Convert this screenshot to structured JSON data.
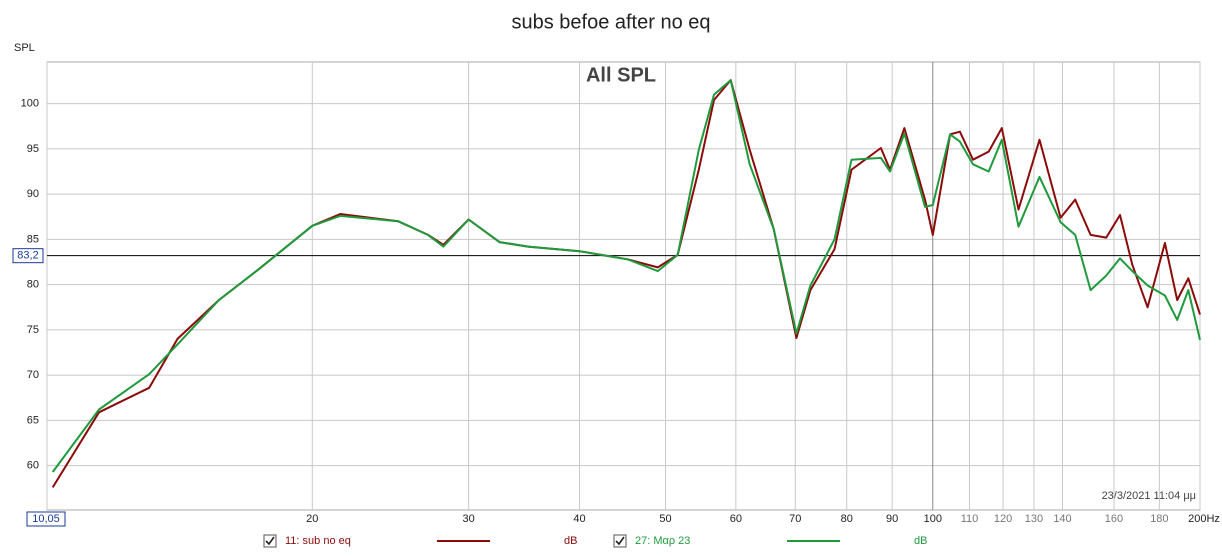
{
  "chart_data": {
    "type": "line",
    "title": "subs befoe after no eq",
    "y_label": "SPL",
    "annotation": "All SPL",
    "timestamp": "23/3/2021 11:04 μμ",
    "log_x": true,
    "grid": true,
    "xlim": [
      10.05,
      200
    ],
    "ylim": [
      55.1,
      104.6
    ],
    "xticks": [
      {
        "value": 10.05,
        "label": "10,05"
      },
      20,
      30,
      40,
      50,
      60,
      70,
      80,
      90,
      100,
      110,
      120,
      130,
      140,
      160,
      180,
      {
        "value": 200,
        "label": "200Hz"
      }
    ],
    "yticks": [
      60,
      65,
      70,
      75,
      80,
      85,
      90,
      95,
      100
    ],
    "cursor": {
      "value": 83.2,
      "label": "83,2"
    },
    "x": [
      10.2,
      11.5,
      13.1,
      14.1,
      15.7,
      17.4,
      20,
      21.5,
      25,
      27,
      28.1,
      30,
      32.5,
      35,
      40,
      45.3,
      49,
      51.6,
      54.5,
      56.7,
      59.2,
      62.2,
      66.2,
      70.2,
      72.8,
      77.5,
      81,
      87.4,
      89.5,
      92.9,
      98,
      100,
      104.6,
      107.3,
      111,
      115.6,
      119.6,
      124.9,
      131.9,
      139.3,
      144.7,
      150.6,
      156.8,
      162.5,
      167.8,
      174.6,
      182.6,
      188.5,
      194,
      200
    ],
    "series": [
      {
        "name": "11: sub no eq",
        "unit": "dB",
        "color": "#8b0a0a",
        "values": [
          57.6,
          65.9,
          68.6,
          74,
          78.3,
          81.7,
          86.5,
          87.8,
          87,
          85.5,
          84.4,
          87.2,
          84.7,
          84.2,
          83.7,
          82.8,
          81.9,
          83.3,
          92.7,
          100.4,
          102.6,
          94.9,
          86.1,
          74.1,
          79.4,
          83.9,
          92.7,
          95.1,
          92.7,
          97.3,
          89.4,
          85.5,
          96.6,
          96.9,
          93.8,
          94.7,
          97.3,
          88.3,
          96,
          87.4,
          89.4,
          85.5,
          85.2,
          87.7,
          82.2,
          77.5,
          84.6,
          78.3,
          80.7,
          76.7
        ]
      },
      {
        "name": "27: Μαρ 23",
        "unit": "dB",
        "color": "#1f9a3c",
        "values": [
          59.3,
          66.2,
          70.1,
          73.4,
          78.3,
          81.7,
          86.5,
          87.6,
          87,
          85.5,
          84.2,
          87.2,
          84.7,
          84.2,
          83.7,
          82.8,
          81.5,
          83.3,
          94.9,
          101,
          102.6,
          93.3,
          86.1,
          74.6,
          79.9,
          85,
          93.8,
          94,
          92.5,
          96.7,
          88.6,
          88.8,
          96.6,
          95.8,
          93.3,
          92.5,
          96,
          86.4,
          91.9,
          86.9,
          85.5,
          79.4,
          81,
          82.9,
          81.5,
          79.9,
          78.8,
          76.1,
          79.4,
          73.9
        ]
      }
    ]
  }
}
